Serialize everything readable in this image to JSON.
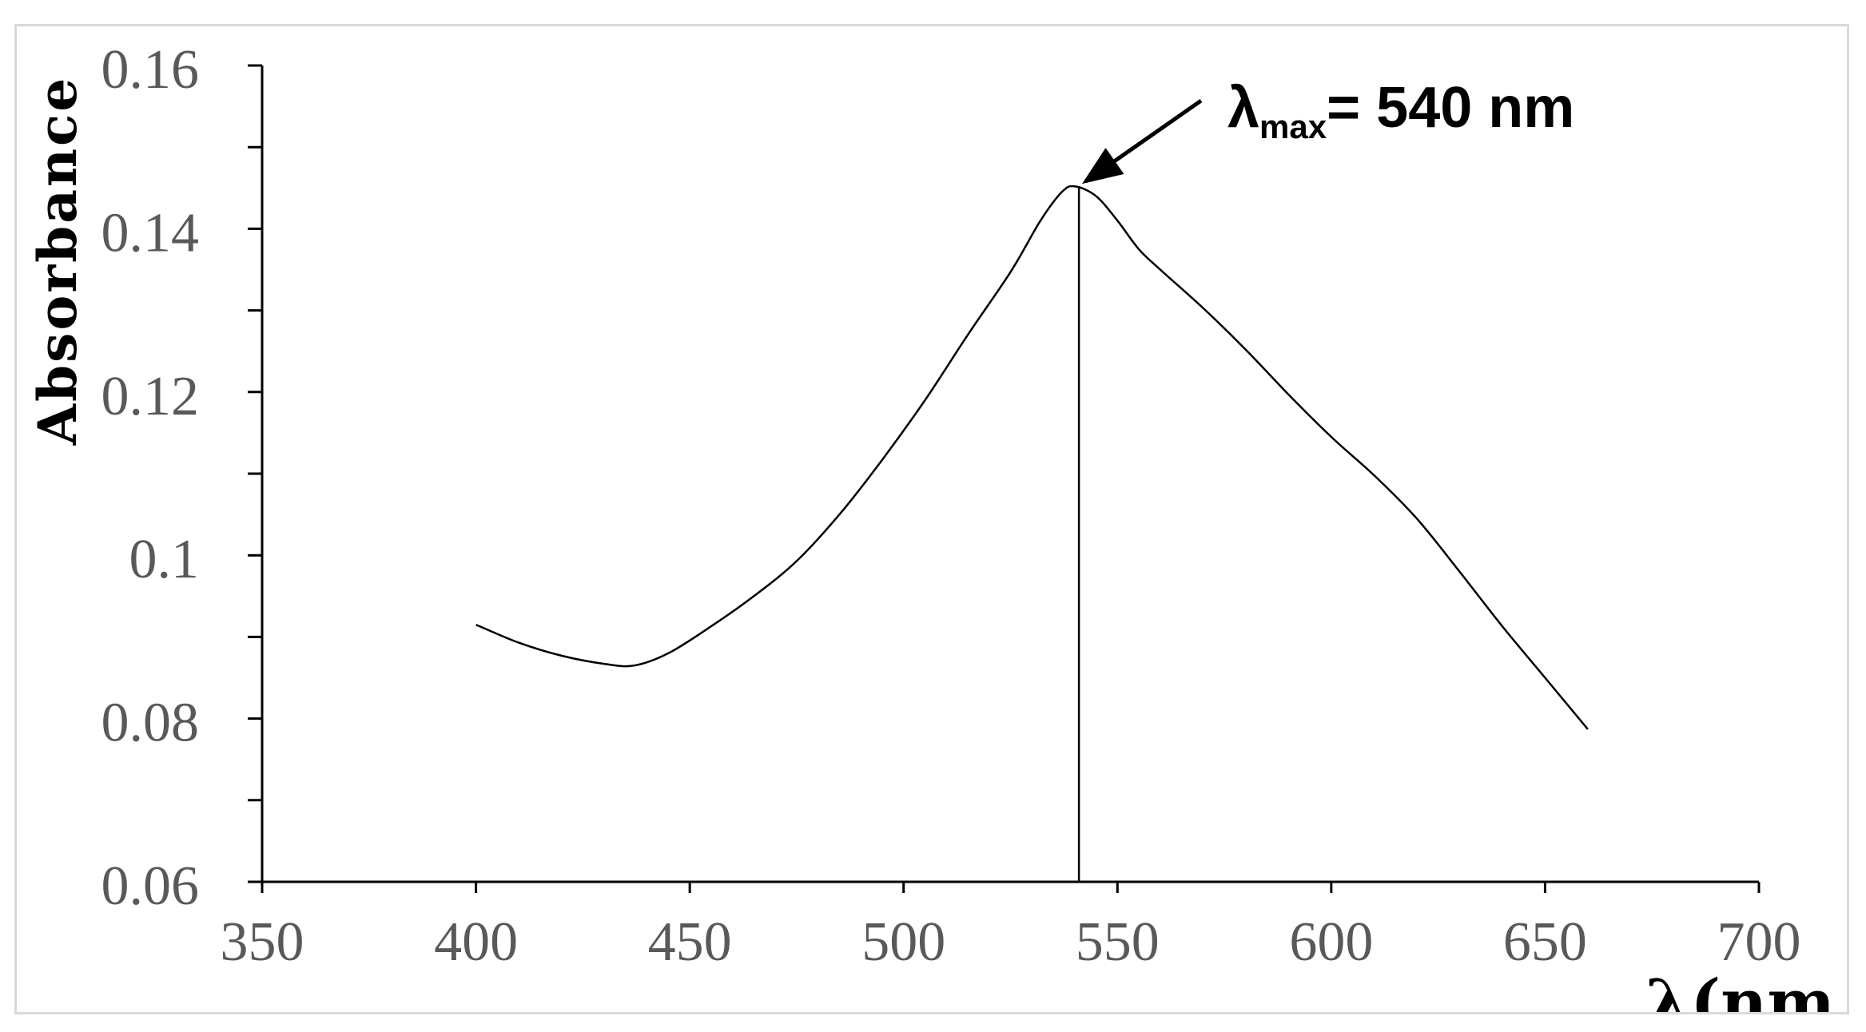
{
  "chart_data": {
    "type": "line",
    "title": "",
    "xlabel": "λ(nm",
    "ylabel": "Absorbance",
    "xlim": [
      350,
      700
    ],
    "ylim": [
      0.06,
      0.16
    ],
    "x_ticks": [
      350,
      400,
      450,
      500,
      550,
      600,
      650,
      700
    ],
    "x_tick_labels": [
      "350",
      "400",
      "450",
      "500",
      "550",
      "600",
      "650",
      "700"
    ],
    "y_ticks": [
      0.06,
      0.08,
      0.1,
      0.12,
      0.14,
      0.16
    ],
    "y_tick_labels": [
      "0.06",
      "0.08",
      "0.1",
      "0.12",
      "0.14",
      "0.16"
    ],
    "y_minor_ticks": [
      0.07,
      0.09,
      0.11,
      0.13,
      0.15
    ],
    "grid": false,
    "legend": "none",
    "series": [
      {
        "x": [
          400,
          410,
          420,
          430,
          437,
          445,
          455,
          465,
          475,
          485,
          495,
          505,
          515,
          525,
          532,
          537,
          540,
          545,
          550,
          555,
          560,
          570,
          580,
          590,
          600,
          610,
          620,
          630,
          640,
          650,
          660
        ],
        "y": [
          0.0915,
          0.0893,
          0.0877,
          0.0867,
          0.0865,
          0.088,
          0.0913,
          0.095,
          0.0993,
          0.105,
          0.1117,
          0.119,
          0.127,
          0.1347,
          0.141,
          0.1445,
          0.1452,
          0.144,
          0.141,
          0.1375,
          0.135,
          0.1303,
          0.1252,
          0.1197,
          0.1145,
          0.1098,
          0.1045,
          0.098,
          0.0913,
          0.085,
          0.0787
        ],
        "color": "#000000"
      }
    ],
    "annotations": [
      {
        "type": "vertical_line",
        "x": 541,
        "label_main": "λ",
        "label_sub": "max",
        "label_rest": "= 540 nm"
      }
    ]
  }
}
